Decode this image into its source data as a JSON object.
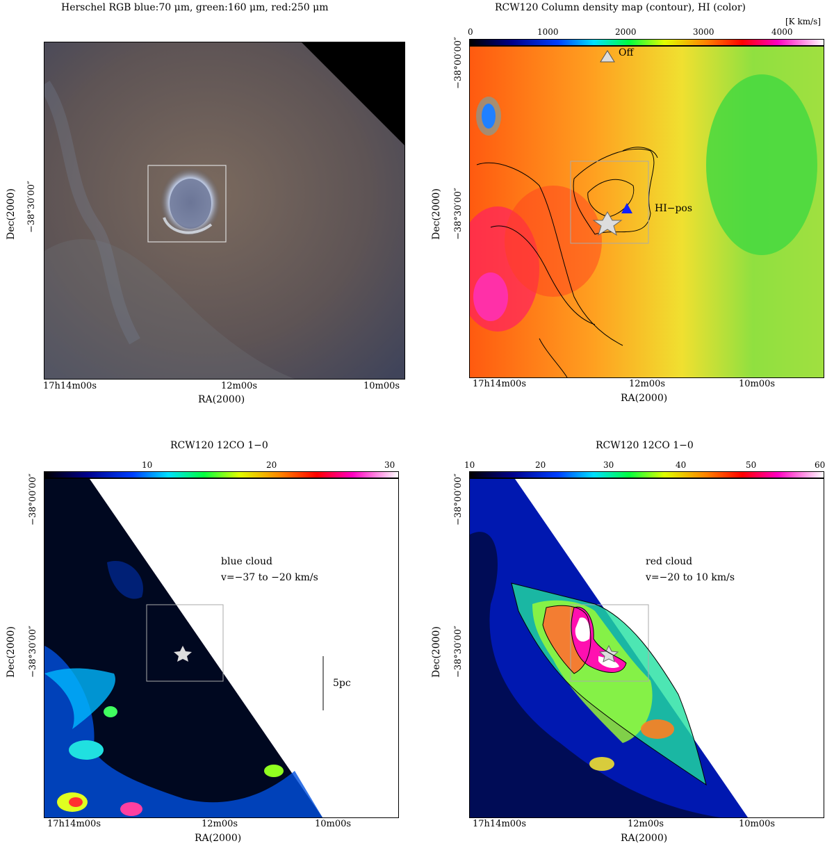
{
  "panels": {
    "tl": {
      "title": "Herschel RGB blue:70 μm, green:160 μm, red:250 μm",
      "xlabel": "RA(2000)",
      "ylabel": "Dec(2000)",
      "xticks": [
        "17h14m00s",
        "12m00s",
        "10m00s"
      ],
      "yticks": [
        "−38°30′00″"
      ]
    },
    "tr": {
      "title": "RCW120 Column density map (contour), HI (color)",
      "unit": "[K km/s]",
      "cbar_ticks": [
        "0",
        "1000",
        "2000",
        "3000",
        "4000"
      ],
      "xlabel": "RA(2000)",
      "ylabel": "Dec(2000)",
      "xticks": [
        "17h14m00s",
        "12m00s",
        "10m00s"
      ],
      "yticks": [
        "−38°00′00″",
        "−38°30′00″"
      ],
      "label_off": "Off",
      "label_hipos": "HI−pos"
    },
    "bl": {
      "title": "RCW120 12CO 1−0",
      "cbar_ticks": [
        "10",
        "20",
        "30"
      ],
      "xlabel": "RA(2000)",
      "ylabel": "Dec(2000)",
      "xticks": [
        "17h14m00s",
        "12m00s",
        "10m00s"
      ],
      "yticks": [
        "−38°00′00″",
        "−38°30′00″"
      ],
      "annot1": "blue cloud",
      "annot2": "v=−37 to −20 km/s",
      "scale": "5pc"
    },
    "br": {
      "title": "RCW120 12CO 1−0",
      "cbar_ticks": [
        "10",
        "20",
        "30",
        "40",
        "50",
        "60"
      ],
      "xlabel": "RA(2000)",
      "ylabel": "Dec(2000)",
      "xticks": [
        "17h14m00s",
        "12m00s",
        "10m00s"
      ],
      "yticks": [
        "−38°00′00″",
        "−38°30′00″"
      ],
      "annot1": "red cloud",
      "annot2": "v=−20 to 10 km/s"
    }
  }
}
